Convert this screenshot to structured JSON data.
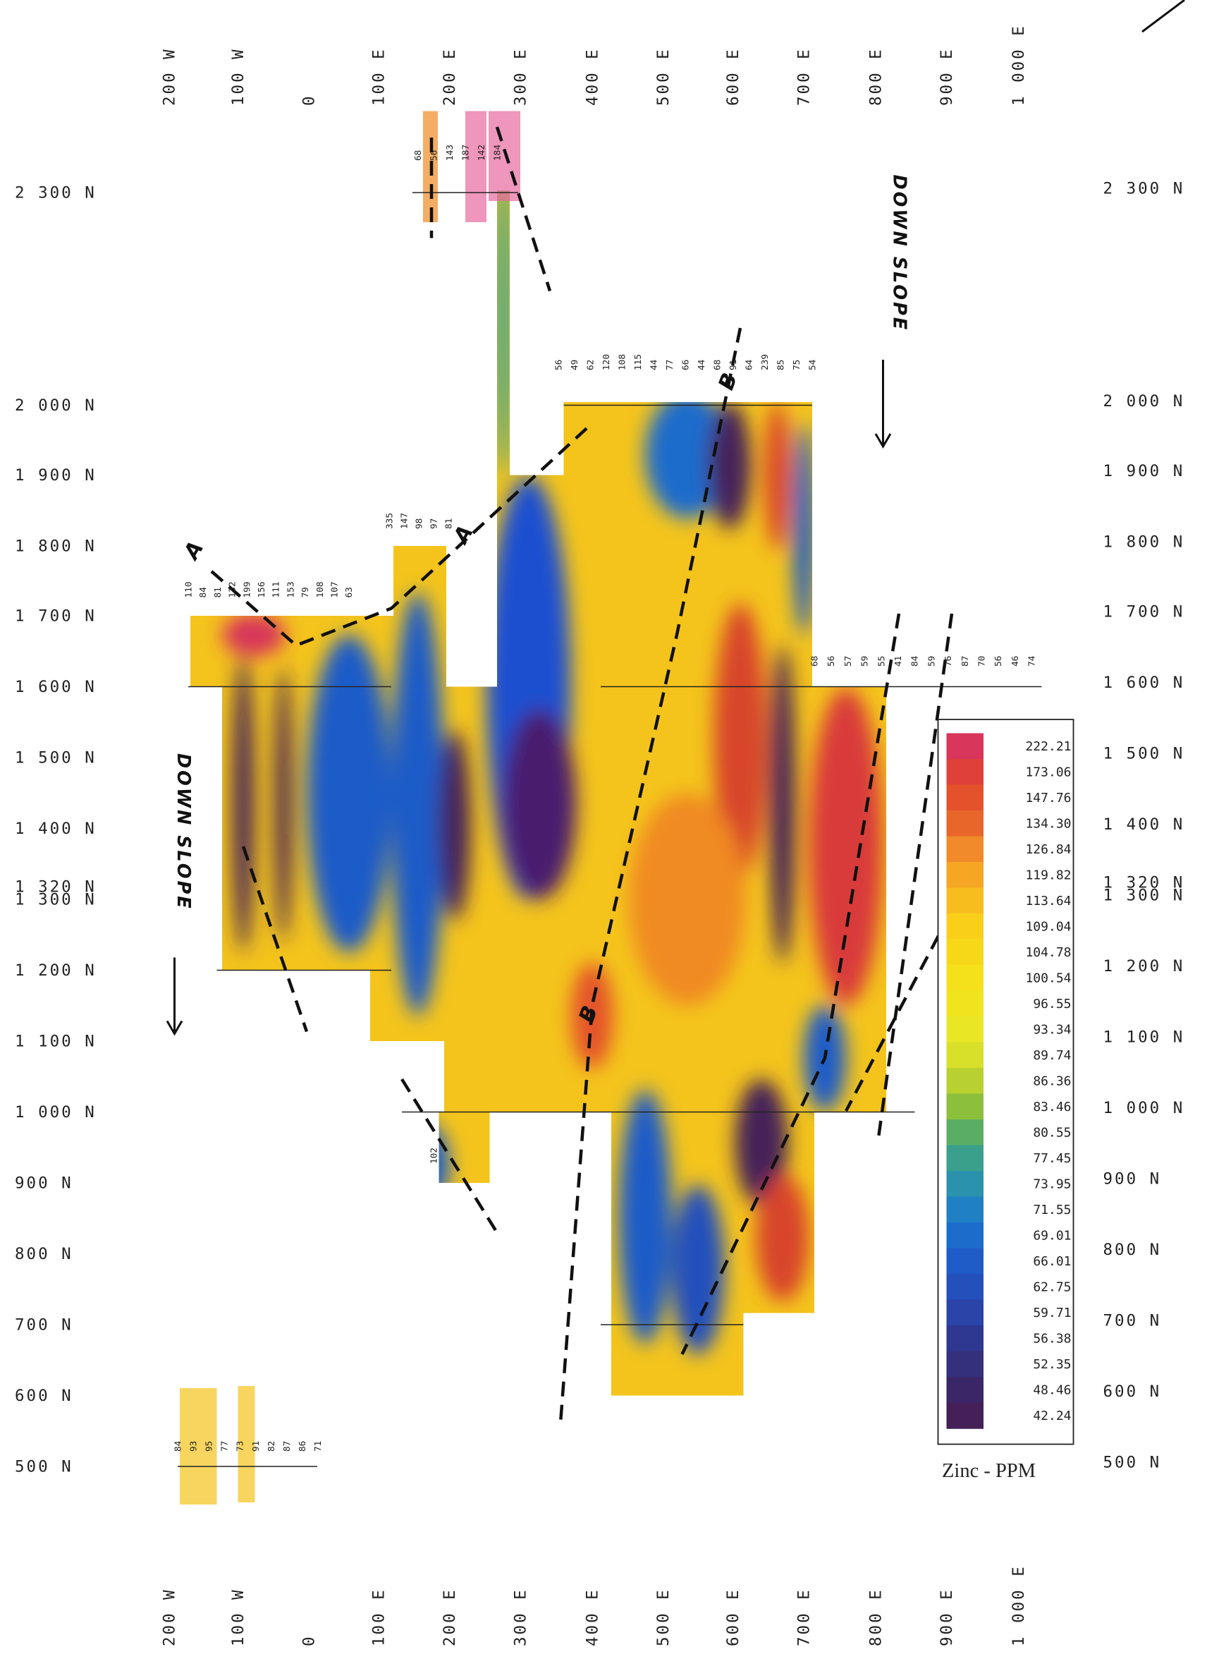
{
  "map": {
    "easting_labels_top": [
      "200 W",
      "100 W",
      "0",
      "100 E",
      "200 E",
      "300 E",
      "400 E",
      "500 E",
      "600 E",
      "700 E",
      "800 E",
      "900 E",
      "1 000 E"
    ],
    "easting_labels_bottom": [
      "200 W",
      "100 W",
      "0",
      "100 E",
      "200 E",
      "300 E",
      "400 E",
      "500 E",
      "600 E",
      "700 E",
      "800 E",
      "900 E",
      "1 000 E"
    ],
    "northing_labels_left": [
      "2 300 N",
      "2 000 N",
      "1 900 N",
      "1 800 N",
      "1 700 N",
      "1 600 N",
      "1 500 N",
      "1 400 N",
      "1 320 N",
      "1 300 N",
      "1 200 N",
      "1 100 N",
      "1 000 N",
      "900 N",
      "800 N",
      "700 N",
      "600 N",
      "500 N"
    ],
    "northing_labels_right": [
      "2 300 N",
      "2 000 N",
      "1 900 N",
      "1 800 N",
      "1 700 N",
      "1 600 N",
      "1 500 N",
      "1 400 N",
      "1 320 N",
      "1 300 N",
      "1 200 N",
      "1 100 N",
      "1 000 N",
      "900 N",
      "800 N",
      "700 N",
      "600 N",
      "500 N"
    ],
    "legend": {
      "title": "Zinc - PPM",
      "entries": [
        {
          "label": "222.21",
          "color": "#d8365a"
        },
        {
          "label": "173.06",
          "color": "#e0403a"
        },
        {
          "label": "147.76",
          "color": "#e4522c"
        },
        {
          "label": "134.30",
          "color": "#e8662a"
        },
        {
          "label": "126.84",
          "color": "#f08a2a"
        },
        {
          "label": "119.82",
          "color": "#f5a623"
        },
        {
          "label": "113.64",
          "color": "#f7bd1e"
        },
        {
          "label": "109.04",
          "color": "#f9cf1a"
        },
        {
          "label": "104.78",
          "color": "#f7d819"
        },
        {
          "label": "100.54",
          "color": "#f5e01c"
        },
        {
          "label": "96.55",
          "color": "#f0e41e"
        },
        {
          "label": "93.34",
          "color": "#e9e626"
        },
        {
          "label": "89.74",
          "color": "#d8e02a"
        },
        {
          "label": "86.36",
          "color": "#b8d030"
        },
        {
          "label": "83.46",
          "color": "#8cc03c"
        },
        {
          "label": "80.55",
          "color": "#5aae64"
        },
        {
          "label": "77.45",
          "color": "#3aa08c"
        },
        {
          "label": "73.95",
          "color": "#2a92ac"
        },
        {
          "label": "71.55",
          "color": "#2080c4"
        },
        {
          "label": "69.01",
          "color": "#1c6ccc"
        },
        {
          "label": "66.01",
          "color": "#1f5cc8"
        },
        {
          "label": "62.75",
          "color": "#2450bc"
        },
        {
          "label": "59.71",
          "color": "#2a44a8"
        },
        {
          "label": "56.38",
          "color": "#2e3890"
        },
        {
          "label": "52.35",
          "color": "#34307c"
        },
        {
          "label": "48.46",
          "color": "#3b2668"
        },
        {
          "label": "42.24",
          "color": "#452058"
        }
      ]
    },
    "annotations": [
      "DOWN SLOPE",
      "DOWN SLOPE",
      "A",
      "A",
      "B",
      "B"
    ],
    "sample_lines": [
      {
        "values": [
          68,
          56,
          143,
          187,
          142,
          184
        ]
      },
      {
        "values": [
          56,
          49,
          62,
          120,
          108,
          115,
          44,
          77,
          66,
          44,
          68,
          91,
          64,
          239,
          85,
          75,
          54
        ]
      },
      {
        "values": [
          335,
          147,
          98,
          97,
          81
        ]
      },
      {
        "values": [
          110,
          84,
          81,
          132,
          199,
          156,
          111,
          153,
          79,
          108,
          107,
          63
        ]
      },
      {
        "values": [
          68,
          56,
          57,
          59,
          55,
          41,
          84,
          59,
          76,
          87,
          70,
          56,
          46,
          74
        ]
      },
      {
        "values": [
          84,
          93,
          95,
          77,
          73,
          91,
          82,
          87,
          86,
          71
        ]
      },
      {
        "values": [
          102
        ]
      }
    ]
  }
}
